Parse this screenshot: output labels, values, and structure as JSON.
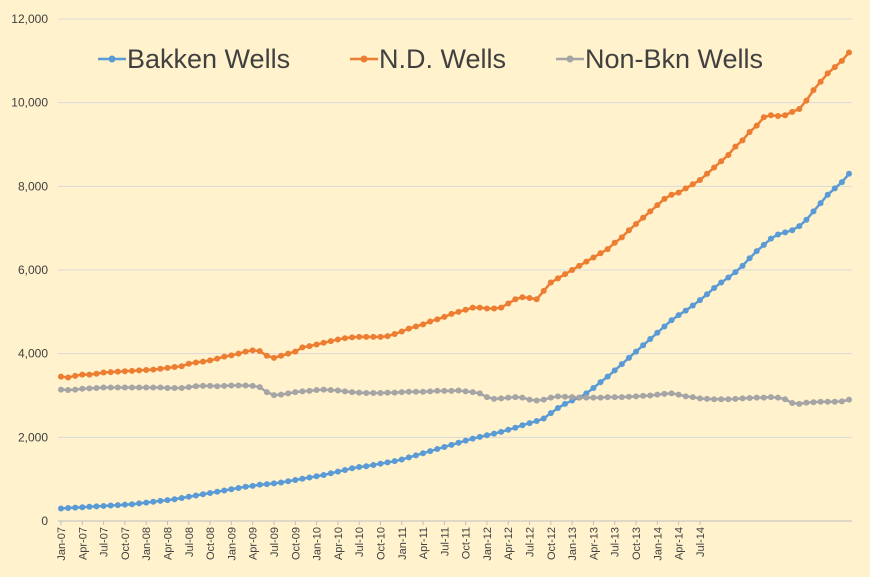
{
  "chart_data": {
    "type": "line",
    "x_start": "2007-01",
    "x_step": "month",
    "x_tick_labels": [
      "Jan-07",
      "Apr-07",
      "Jul-07",
      "Oct-07",
      "Jan-08",
      "Apr-08",
      "Jul-08",
      "Oct-08",
      "Jan-09",
      "Apr-09",
      "Jul-09",
      "Oct-09",
      "Jan-10",
      "Apr-10",
      "Jul-10",
      "Oct-10",
      "Jan-11",
      "Apr-11",
      "Jul-11",
      "Oct-11",
      "Jan-12",
      "Apr-12",
      "Jul-12",
      "Oct-12",
      "Jan-13",
      "Apr-13",
      "Jul-13",
      "Oct-13",
      "Jan-14",
      "Apr-14",
      "Jul-14"
    ],
    "y_tick_labels": [
      "0",
      "2,000",
      "4,000",
      "6,000",
      "8,000",
      "10,000",
      "12,000"
    ],
    "ylim": [
      0,
      12000
    ],
    "grid": "horizontal",
    "legend_position": "top",
    "series": [
      {
        "name": "Bakken Wells",
        "color": "#5B9BD5",
        "values": [
          300,
          310,
          320,
          330,
          340,
          350,
          360,
          370,
          380,
          390,
          400,
          420,
          440,
          460,
          480,
          500,
          520,
          550,
          580,
          610,
          640,
          670,
          700,
          730,
          760,
          790,
          820,
          840,
          870,
          880,
          900,
          920,
          950,
          980,
          1010,
          1040,
          1070,
          1100,
          1140,
          1180,
          1220,
          1260,
          1290,
          1310,
          1340,
          1370,
          1400,
          1430,
          1470,
          1520,
          1570,
          1620,
          1670,
          1720,
          1770,
          1820,
          1870,
          1920,
          1970,
          2010,
          2050,
          2090,
          2130,
          2180,
          2230,
          2290,
          2340,
          2390,
          2450,
          2580,
          2700,
          2800,
          2880,
          2950,
          3050,
          3180,
          3320,
          3450,
          3600,
          3750,
          3900,
          4050,
          4200,
          4350,
          4500,
          4650,
          4800,
          4920,
          5030,
          5150,
          5280,
          5420,
          5570,
          5700,
          5820,
          5950,
          6100,
          6280,
          6450,
          6600,
          6750,
          6850,
          6900,
          6950,
          7050,
          7200,
          7400,
          7600,
          7800,
          7950,
          8100,
          8300
        ]
      },
      {
        "name": "N.D. Wells",
        "color": "#ED7D31",
        "values": [
          3450,
          3430,
          3470,
          3500,
          3500,
          3520,
          3550,
          3560,
          3570,
          3580,
          3590,
          3600,
          3610,
          3620,
          3640,
          3660,
          3680,
          3700,
          3760,
          3790,
          3810,
          3840,
          3880,
          3930,
          3960,
          4000,
          4050,
          4080,
          4060,
          3950,
          3900,
          3950,
          4000,
          4050,
          4150,
          4180,
          4220,
          4260,
          4300,
          4340,
          4370,
          4390,
          4400,
          4400,
          4400,
          4400,
          4420,
          4470,
          4530,
          4600,
          4650,
          4700,
          4770,
          4820,
          4880,
          4950,
          5000,
          5050,
          5100,
          5100,
          5080,
          5080,
          5100,
          5200,
          5300,
          5350,
          5330,
          5300,
          5500,
          5700,
          5800,
          5900,
          6000,
          6100,
          6200,
          6300,
          6400,
          6500,
          6650,
          6780,
          6950,
          7100,
          7250,
          7400,
          7550,
          7700,
          7800,
          7850,
          7950,
          8050,
          8150,
          8300,
          8450,
          8600,
          8750,
          8950,
          9100,
          9300,
          9450,
          9650,
          9700,
          9680,
          9700,
          9780,
          9850,
          10050,
          10300,
          10500,
          10700,
          10850,
          11000,
          11200
        ]
      },
      {
        "name": "Non-Bkn Wells",
        "color": "#A5A5A5",
        "values": [
          3140,
          3130,
          3140,
          3160,
          3170,
          3180,
          3190,
          3190,
          3190,
          3190,
          3190,
          3190,
          3190,
          3190,
          3190,
          3180,
          3180,
          3180,
          3200,
          3220,
          3230,
          3230,
          3220,
          3230,
          3240,
          3240,
          3240,
          3230,
          3200,
          3080,
          3010,
          3020,
          3050,
          3080,
          3100,
          3110,
          3130,
          3140,
          3130,
          3120,
          3100,
          3080,
          3070,
          3060,
          3060,
          3060,
          3070,
          3070,
          3080,
          3090,
          3090,
          3090,
          3100,
          3110,
          3110,
          3110,
          3120,
          3100,
          3080,
          3050,
          2960,
          2920,
          2930,
          2950,
          2960,
          2950,
          2900,
          2880,
          2900,
          2950,
          2980,
          2970,
          2960,
          2950,
          2950,
          2950,
          2950,
          2960,
          2960,
          2960,
          2970,
          2980,
          2990,
          3000,
          3020,
          3040,
          3050,
          3020,
          2980,
          2960,
          2930,
          2920,
          2910,
          2910,
          2910,
          2920,
          2930,
          2940,
          2950,
          2950,
          2960,
          2950,
          2910,
          2820,
          2800,
          2830,
          2840,
          2850,
          2850,
          2850,
          2860,
          2900
        ]
      }
    ]
  }
}
